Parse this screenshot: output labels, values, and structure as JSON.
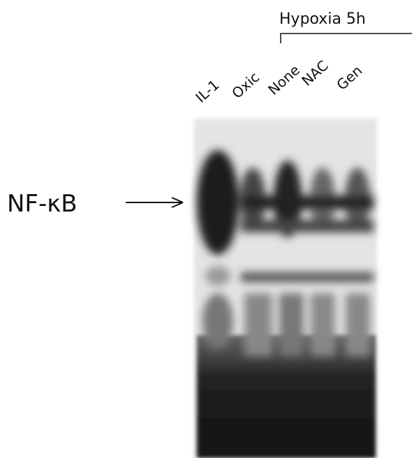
{
  "group_label": "Hypoxia 5h",
  "lanes": [
    "IL-1",
    "Oxic",
    "None",
    "NAC",
    "Gen"
  ],
  "band_label": "NF-κB"
}
